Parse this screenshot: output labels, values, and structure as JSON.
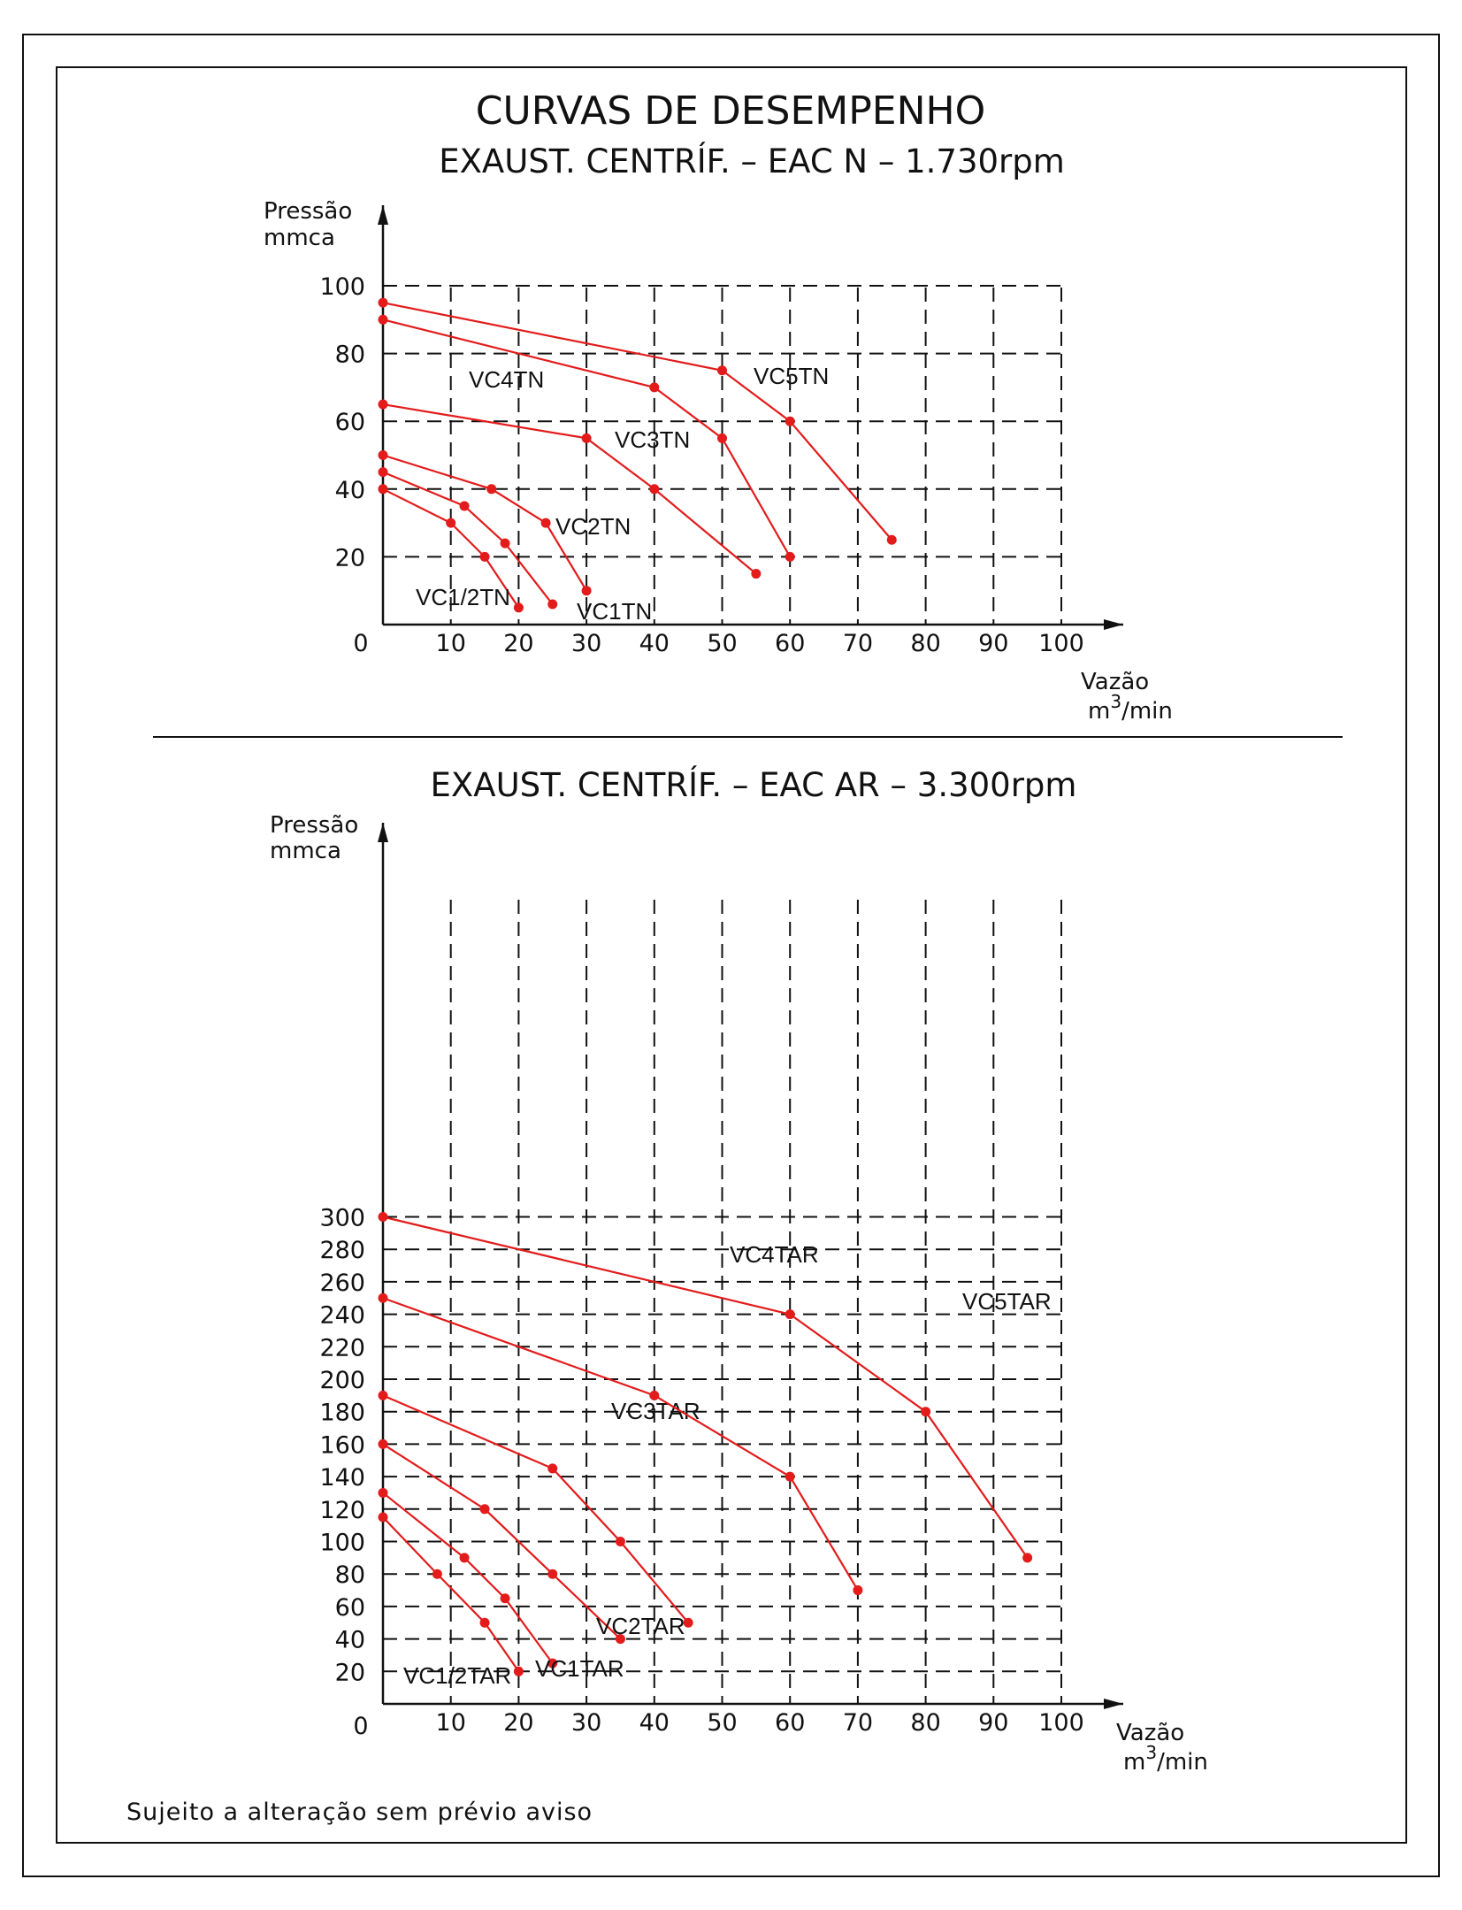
{
  "colors": {
    "curve": "#e31b1b",
    "ink": "#111111"
  },
  "page": {
    "title": "CURVAS DE DESEMPENHO",
    "footer": "Sujeito a alteração sem prévio aviso"
  },
  "chart_data": [
    {
      "type": "line",
      "title": "EXAUST. CENTRÍF. – EAC N – 1.730rpm",
      "ylabel_line1": "Pressão",
      "ylabel_line2": "mmca",
      "xlabel_line1": "Vazão",
      "xlabel_unit": "m3/min",
      "origin_label": "0",
      "xlim": [
        0,
        100
      ],
      "ylim": [
        0,
        100
      ],
      "x_ticks": [
        10,
        20,
        30,
        40,
        50,
        60,
        70,
        80,
        90,
        100
      ],
      "y_ticks": [
        20,
        40,
        60,
        80,
        100
      ],
      "grid": true,
      "series": [
        {
          "name": "VC1/2TN",
          "x": [
            0,
            10,
            15,
            20
          ],
          "y": [
            40,
            30,
            20,
            5
          ]
        },
        {
          "name": "VC1TN",
          "x": [
            0,
            12,
            18,
            25
          ],
          "y": [
            45,
            35,
            24,
            6
          ]
        },
        {
          "name": "VC2TN",
          "x": [
            0,
            16,
            24,
            30
          ],
          "y": [
            50,
            40,
            30,
            10
          ]
        },
        {
          "name": "VC3TN",
          "x": [
            0,
            30,
            40,
            55
          ],
          "y": [
            65,
            55,
            40,
            15
          ]
        },
        {
          "name": "VC4TN",
          "x": [
            0,
            40,
            50,
            60
          ],
          "y": [
            90,
            70,
            55,
            20
          ]
        },
        {
          "name": "VC5TN",
          "x": [
            0,
            50,
            60,
            75
          ],
          "y": [
            95,
            75,
            60,
            25
          ]
        }
      ]
    },
    {
      "type": "line",
      "title": "EXAUST. CENTRÍF. – EAC AR – 3.300rpm",
      "ylabel_line1": "Pressão",
      "ylabel_line2": "mmca",
      "xlabel_line1": "Vazão",
      "xlabel_unit": "m3/min",
      "origin_label": "0",
      "xlim": [
        0,
        100
      ],
      "ylim": [
        0,
        300
      ],
      "x_ticks": [
        10,
        20,
        30,
        40,
        50,
        60,
        70,
        80,
        90,
        100
      ],
      "y_ticks": [
        20,
        40,
        60,
        80,
        100,
        120,
        140,
        160,
        180,
        200,
        220,
        240,
        260,
        280,
        300
      ],
      "grid": true,
      "series": [
        {
          "name": "VC1/2TAR",
          "x": [
            0,
            8,
            15,
            20
          ],
          "y": [
            115,
            80,
            50,
            20
          ]
        },
        {
          "name": "VC1TAR",
          "x": [
            0,
            12,
            18,
            25
          ],
          "y": [
            130,
            90,
            65,
            25
          ]
        },
        {
          "name": "VC2TAR",
          "x": [
            0,
            15,
            25,
            35
          ],
          "y": [
            160,
            120,
            80,
            40
          ]
        },
        {
          "name": "VC3TAR",
          "x": [
            0,
            25,
            35,
            45
          ],
          "y": [
            190,
            145,
            100,
            50
          ]
        },
        {
          "name": "VC4TAR",
          "x": [
            0,
            40,
            60,
            70
          ],
          "y": [
            250,
            190,
            140,
            70
          ]
        },
        {
          "name": "VC5TAR",
          "x": [
            0,
            60,
            80,
            95
          ],
          "y": [
            300,
            240,
            180,
            90
          ]
        }
      ]
    }
  ]
}
